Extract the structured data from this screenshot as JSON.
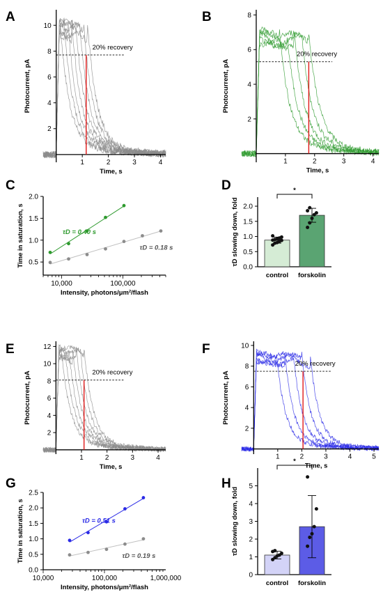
{
  "colors": {
    "gray": "#8c8c8c",
    "green": "#2e9a2e",
    "blue": "#2a2ae6",
    "red": "#e01818",
    "lightgreen": "#d5ecd5",
    "darkgreen": "#5aa472",
    "lightblue": "#d3d3f7",
    "medblue": "#5c5ce6"
  },
  "chart_data": [
    {
      "panel": "A",
      "type": "line",
      "series_color": "gray",
      "ylabel": "Photocurrent, pA",
      "xlabel": "Time, s",
      "xlim": [
        -0.5,
        4.2
      ],
      "ylim": [
        -0.6,
        11.2
      ],
      "xticks": [
        1,
        2,
        3,
        4
      ],
      "yticks": [
        2,
        4,
        6,
        8,
        10
      ],
      "peak": 10.2,
      "recovery_level": 7.7,
      "recovery_time": 1.15,
      "annotation": "20% recovery",
      "series": [
        {
          "values_saturation_s": [
            0.15,
            0.3,
            0.45,
            0.6,
            0.75,
            0.9,
            1.05,
            1.2
          ]
        }
      ]
    },
    {
      "panel": "B",
      "type": "line",
      "series_color": "green",
      "ylabel": "Photocurrent, pA",
      "xlabel": "Time, s",
      "xlim": [
        -0.5,
        4.2
      ],
      "ylim": [
        -0.5,
        8.3
      ],
      "xticks": [
        1,
        2,
        3,
        4
      ],
      "yticks": [
        2,
        4,
        6,
        8
      ],
      "peak": 7.0,
      "recovery_level": 5.3,
      "recovery_time": 1.8,
      "annotation": "20% recovery",
      "series": [
        {
          "values_saturation_s": [
            0.8,
            1.05,
            1.3,
            1.55,
            1.8
          ]
        }
      ]
    },
    {
      "panel": "C",
      "type": "scatter",
      "log_x": true,
      "ylabel": "Time in saturation, s",
      "xlabel": "Intensity, photons/μm²/flash",
      "xlim": [
        5000,
        500000
      ],
      "ylim": [
        0.2,
        2.0
      ],
      "xtick_labels": [
        "10,000",
        "100,000"
      ],
      "xtick_values": [
        10000,
        100000
      ],
      "yticks": [
        0.5,
        1.0,
        1.5,
        2.0
      ],
      "series": [
        {
          "name": "τD = 0.40 s",
          "color": "green",
          "x": [
            6500,
            13000,
            26000,
            52000,
            104000
          ],
          "y": [
            0.72,
            0.92,
            1.21,
            1.52,
            1.79
          ]
        },
        {
          "name": "τD = 0.18 s",
          "color": "gray",
          "x": [
            6500,
            13000,
            26000,
            52000,
            104000,
            208000,
            416000
          ],
          "y": [
            0.49,
            0.57,
            0.67,
            0.8,
            0.97,
            1.1,
            1.21
          ]
        }
      ]
    },
    {
      "panel": "D",
      "type": "bar",
      "ylabel": "τD slowing down, fold",
      "categories": [
        "control",
        "forskolin"
      ],
      "values": [
        0.88,
        1.7
      ],
      "errors": [
        0.1,
        0.23
      ],
      "ylim": [
        0,
        2.3
      ],
      "yticks": [
        0.0,
        0.5,
        1.0,
        1.5,
        2.0
      ],
      "significance": "*",
      "points": [
        [
          0.72,
          0.78,
          0.8,
          0.84,
          0.87,
          0.88,
          0.9,
          0.92,
          0.95,
          0.98,
          1.02
        ],
        [
          1.3,
          1.45,
          1.6,
          1.72,
          1.78,
          1.85,
          1.95
        ]
      ]
    },
    {
      "panel": "E",
      "type": "line",
      "series_color": "gray",
      "ylabel": "Photocurrent, pA",
      "xlabel": "Time, s",
      "xlim": [
        -0.5,
        4.3
      ],
      "ylim": [
        -0.5,
        12.6
      ],
      "xticks": [
        1,
        2,
        3,
        4
      ],
      "yticks": [
        2,
        4,
        6,
        8,
        10,
        12
      ],
      "peak": 11.8,
      "recovery_level": 8.1,
      "recovery_time": 1.1,
      "annotation": "20% recovery",
      "series": [
        {
          "values_saturation_s": [
            0.2,
            0.35,
            0.5,
            0.65,
            0.8,
            0.95,
            1.1
          ]
        }
      ]
    },
    {
      "panel": "F",
      "type": "line",
      "series_color": "blue",
      "ylabel": "Photocurrent, pA",
      "xlabel": "Time, s",
      "xlim": [
        -0.5,
        5.2
      ],
      "ylim": [
        -0.5,
        10.4
      ],
      "xticks": [
        1,
        2,
        3,
        4,
        5
      ],
      "yticks": [
        2,
        4,
        6,
        8,
        10
      ],
      "peak": 9.2,
      "recovery_level": 7.5,
      "recovery_time": 2.05,
      "annotation": "20% recovery",
      "series": [
        {
          "values_saturation_s": [
            0.95,
            1.3,
            1.65,
            2.0,
            2.35
          ]
        }
      ]
    },
    {
      "panel": "G",
      "type": "scatter",
      "log_x": true,
      "ylabel": "Time in saturation, s",
      "xlabel": "Intensity, photons/μm²/flash",
      "xlim": [
        10000,
        1000000
      ],
      "ylim": [
        0.0,
        2.5
      ],
      "xtick_labels": [
        "10,000",
        "100,000",
        "1,000,000"
      ],
      "xtick_values": [
        10000,
        100000,
        1000000
      ],
      "yticks": [
        0.0,
        0.5,
        1.0,
        1.5,
        2.0,
        2.5
      ],
      "series": [
        {
          "name": "τD = 0.51 s",
          "color": "blue",
          "x": [
            27000,
            54000,
            108000,
            216000,
            432000
          ],
          "y": [
            0.95,
            1.2,
            1.55,
            1.97,
            2.33
          ]
        },
        {
          "name": "τD = 0.19 s",
          "color": "gray",
          "x": [
            27000,
            54000,
            108000,
            216000,
            432000
          ],
          "y": [
            0.48,
            0.56,
            0.66,
            0.83,
            1.0
          ]
        }
      ]
    },
    {
      "panel": "H",
      "type": "bar",
      "ylabel": "τD slowing down, fold",
      "categories": [
        "control",
        "forskolin"
      ],
      "values": [
        1.1,
        2.7
      ],
      "errors": [
        0.22,
        1.75
      ],
      "ylim": [
        0,
        6
      ],
      "yticks": [
        0,
        1,
        2,
        3,
        4,
        5
      ],
      "significance": "*",
      "points": [
        [
          0.85,
          0.95,
          1.05,
          1.1,
          1.2,
          1.3,
          1.35
        ],
        [
          1.6,
          2.1,
          2.3,
          2.7,
          3.7,
          5.5
        ]
      ]
    }
  ],
  "panel_letters": [
    "A",
    "B",
    "C",
    "D",
    "E",
    "F",
    "G",
    "H"
  ]
}
